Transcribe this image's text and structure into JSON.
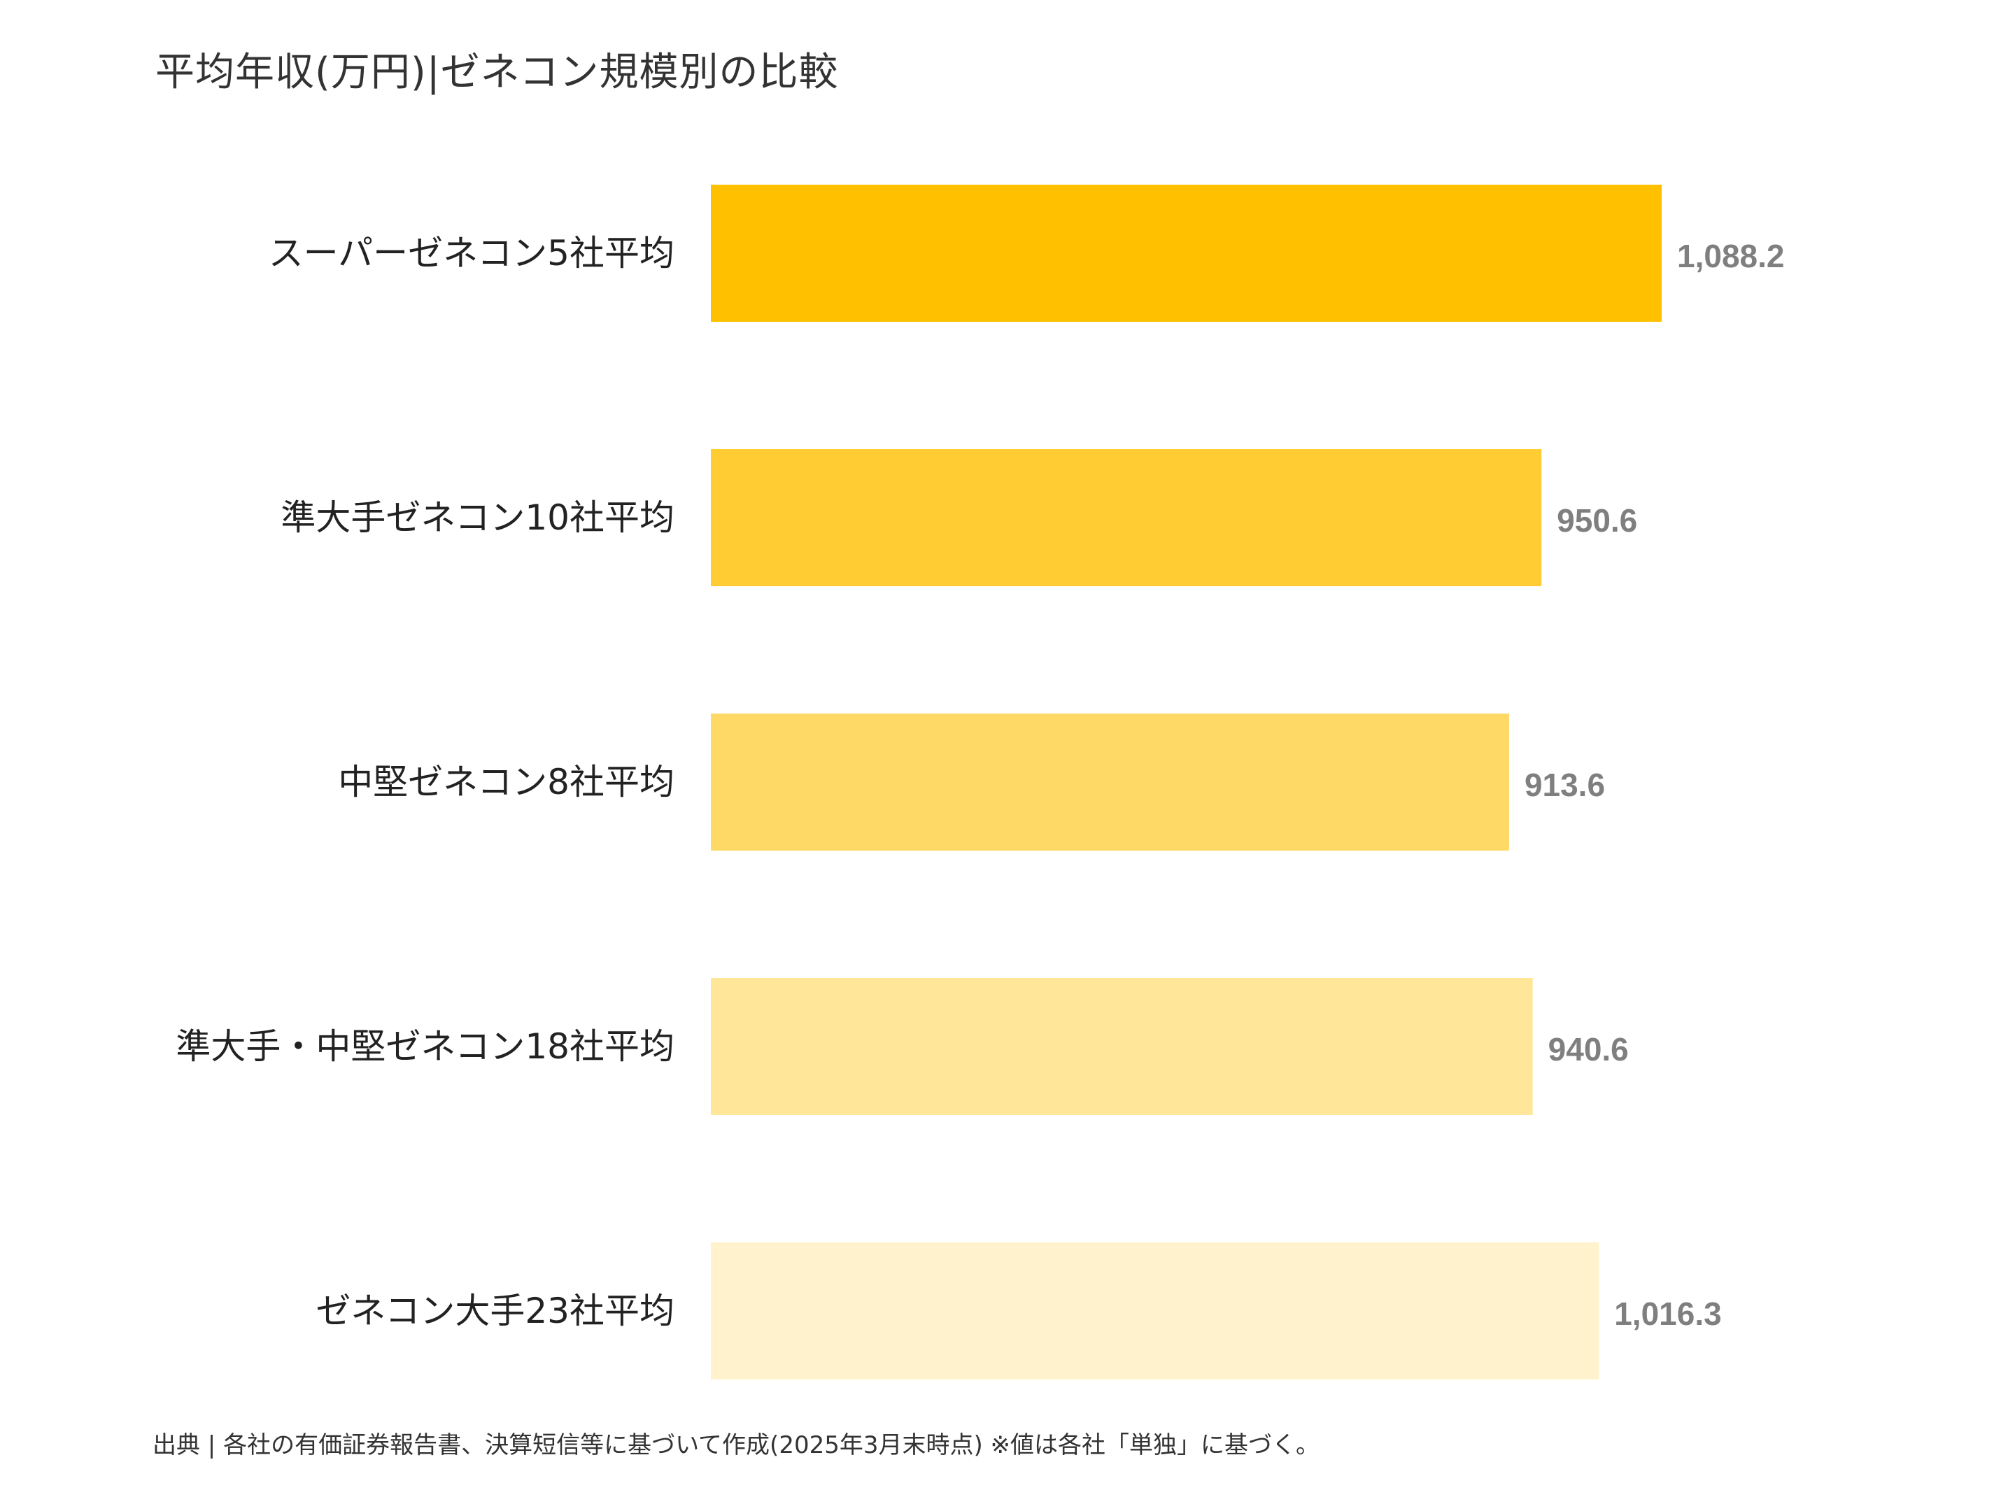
{
  "title": "平均年収(万円)|ゼネコン規模別の比較",
  "source_note": "出典 | 各社の有価証券報告書、決算短信等に基づいて作成(2025年3月末時点) ※値は各社「単独」に基づく。",
  "chart_data": {
    "type": "bar",
    "orientation": "horizontal",
    "categories": [
      "スーパーゼネコン5社平均",
      "準大手ゼネコン10社平均",
      "中堅ゼネコン8社平均",
      "準大手・中堅ゼネコン18社平均",
      "ゼネコン大手23社平均"
    ],
    "values": [
      1088.2,
      950.6,
      913.6,
      940.6,
      1016.3
    ],
    "value_labels": [
      "1,088.2",
      "950.6",
      "913.6",
      "940.6",
      "1,016.3"
    ],
    "colors": [
      "#FFC000",
      "#FFCC33",
      "#FED966",
      "#FFE699",
      "#FFF2CC"
    ],
    "xlim": [
      0,
      1088.2
    ],
    "grid": false,
    "legend": "none"
  }
}
